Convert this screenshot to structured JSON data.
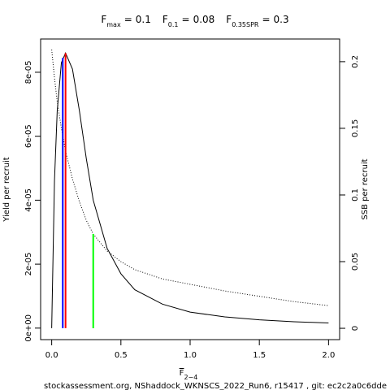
{
  "chart_data": {
    "type": "line",
    "title": [
      {
        "symbol": "F",
        "subscript": "max",
        "relation": "=",
        "value": 0.1
      },
      {
        "symbol": "F",
        "subscript": "0.1",
        "relation": "=",
        "value": 0.08
      },
      {
        "symbol": "F",
        "subscript": "0.35SPR",
        "relation": "=",
        "value": 0.3
      }
    ],
    "xlabel": {
      "symbol": "F",
      "subscript": "2−4"
    },
    "ylabel": "Yield per recruit",
    "y2label": "SSB per recruit",
    "x": [
      0,
      0.02,
      0.04,
      0.07,
      0.1,
      0.15,
      0.2,
      0.25,
      0.3,
      0.4,
      0.5,
      0.6,
      0.8,
      1.0,
      1.25,
      1.5,
      1.75,
      2.0
    ],
    "series": [
      {
        "color": "#000000",
        "linestyle": "solid",
        "values": [
          0,
          4.6e-05,
          6.8e-05,
          8.3e-05,
          8.6e-05,
          8.1e-05,
          6.8e-05,
          5.3e-05,
          4e-05,
          2.5e-05,
          1.7e-05,
          1.2e-05,
          7.5e-06,
          5e-06,
          3.5e-06,
          2.6e-06,
          2e-06,
          1.6e-06
        ]
      },
      {
        "color": "#000000",
        "linestyle": "dotted",
        "axis": "y2",
        "values": [
          0.209,
          0.188,
          0.17,
          0.15,
          0.133,
          0.112,
          0.095,
          0.081,
          0.0707,
          0.058,
          0.05,
          0.044,
          0.037,
          0.033,
          0.028,
          0.024,
          0.02,
          0.017
        ]
      }
    ],
    "reference_lines": [
      {
        "x": 0.08,
        "y": 8.45e-05,
        "color": "#0000ff"
      },
      {
        "x": 0.1,
        "y": 8.6e-05,
        "color": "#ff0000"
      },
      {
        "x": 0.3,
        "y": 0.0707,
        "axis": "y2",
        "color": "#00ff00"
      }
    ],
    "xlim": [
      -0.08,
      2.08
    ],
    "xticks": [
      {
        "value": 0,
        "label": "0.0"
      },
      {
        "value": 0.5,
        "label": "0.5"
      },
      {
        "value": 1,
        "label": "1.0"
      },
      {
        "value": 1.5,
        "label": "1.5"
      },
      {
        "value": 2,
        "label": "2.0"
      }
    ],
    "ylim": [
      -3.6e-06,
      9.04e-05
    ],
    "yticks": [
      {
        "value": 0,
        "label": "0e+00"
      },
      {
        "value": 2e-05,
        "label": "2e-05"
      },
      {
        "value": 4e-05,
        "label": "4e-05"
      },
      {
        "value": 6e-05,
        "label": "6e-05"
      },
      {
        "value": 8e-05,
        "label": "8e-05"
      }
    ],
    "y2lim": [
      -0.0085,
      0.217
    ],
    "y2ticks": [
      0,
      0.05,
      0.1,
      0.15,
      0.2
    ],
    "footer": "stockassessment.org, NShaddock_WKNSCS_2022_Run6, r15417 , git: ec2c2a0c6dde"
  }
}
